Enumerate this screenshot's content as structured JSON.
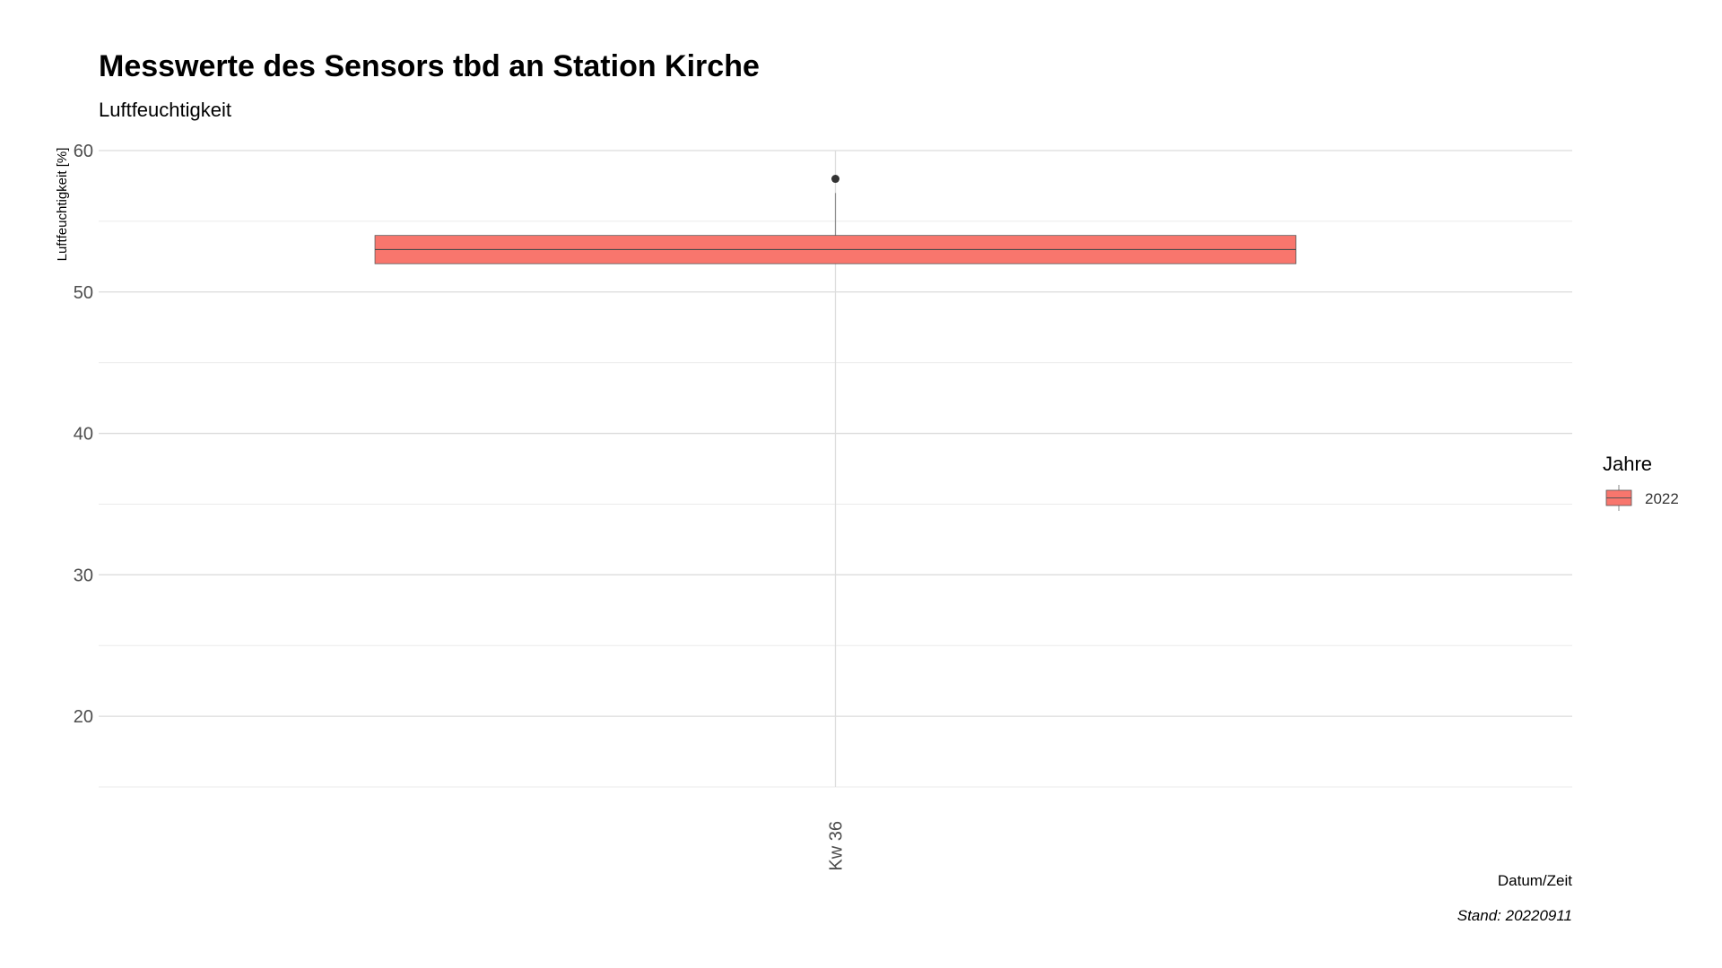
{
  "chart_data": {
    "type": "boxplot",
    "title": "Messwerte des Sensors tbd an Station Kirche",
    "subtitle": "Luftfeuchtigkeit",
    "xlabel": "Datum/Zeit",
    "ylabel": "Luftfeuchtigkeit [%]",
    "caption": "Stand: 20220911",
    "ylim": [
      15,
      60
    ],
    "yticks": [
      20,
      30,
      40,
      50,
      60
    ],
    "grid": true,
    "legend": {
      "title": "Jahre",
      "position": "right",
      "entries": [
        "2022"
      ]
    },
    "categories": [
      "Kw 36"
    ],
    "series": [
      {
        "name": "2022",
        "color": "#F8766D",
        "boxes": [
          {
            "category": "Kw 36",
            "whisker_low": 52,
            "q1": 52,
            "median": 53,
            "q3": 54,
            "whisker_high": 57,
            "outliers": [
              58
            ]
          }
        ]
      }
    ]
  }
}
